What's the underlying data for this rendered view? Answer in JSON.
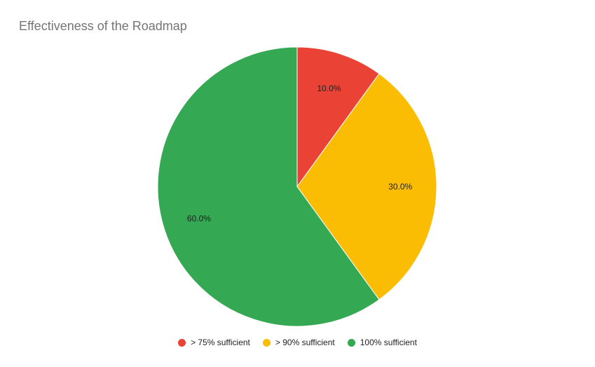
{
  "chart_data": {
    "type": "pie",
    "title": "Effectiveness of the Roadmap",
    "categories": [
      "> 75% sufficient",
      "> 90% sufficient",
      "100% sufficient"
    ],
    "values": [
      10.0,
      30.0,
      60.0
    ],
    "labels": [
      "10.0%",
      "30.0%",
      "60.0%"
    ],
    "colors": [
      "#ea4335",
      "#fbbc04",
      "#34a853"
    ],
    "legend_position": "bottom"
  }
}
